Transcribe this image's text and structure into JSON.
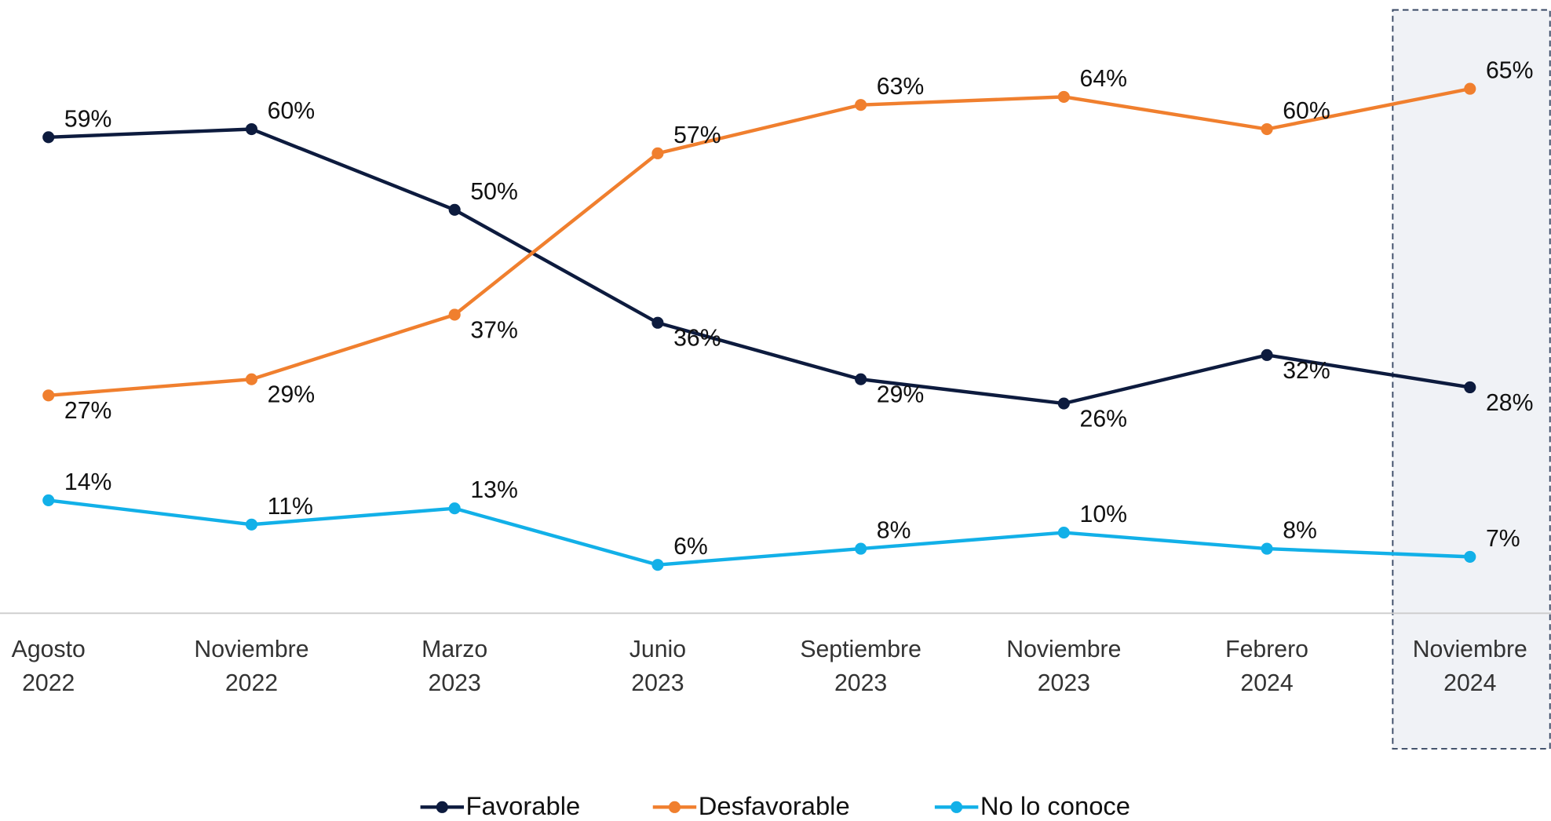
{
  "chart_data": {
    "type": "line",
    "categories": [
      "Agosto 2022",
      "Noviembre 2022",
      "Marzo 2023",
      "Junio 2023",
      "Septiembre 2023",
      "Noviembre 2023",
      "Febrero 2024",
      "Noviembre 2024"
    ],
    "ylim": [
      0,
      76
    ],
    "series": [
      {
        "name": "Favorable",
        "color": "#0d1b3e",
        "values": [
          59,
          60,
          50,
          36,
          29,
          26,
          32,
          28
        ],
        "value_labels": [
          "59%",
          "60%",
          "50%",
          "36%",
          "29%",
          "26%",
          "32%",
          "28%"
        ]
      },
      {
        "name": "Desfavorable",
        "color": "#f07f2e",
        "values": [
          27,
          29,
          37,
          57,
          63,
          64,
          60,
          65
        ],
        "value_labels": [
          "27%",
          "29%",
          "37%",
          "57%",
          "63%",
          "64%",
          "60%",
          "65%"
        ]
      },
      {
        "name": "No lo conoce",
        "color": "#12b0e8",
        "values": [
          14,
          11,
          13,
          6,
          8,
          10,
          8,
          7
        ],
        "value_labels": [
          "14%",
          "11%",
          "13%",
          "6%",
          "8%",
          "10%",
          "8%",
          "7%"
        ]
      }
    ]
  }
}
